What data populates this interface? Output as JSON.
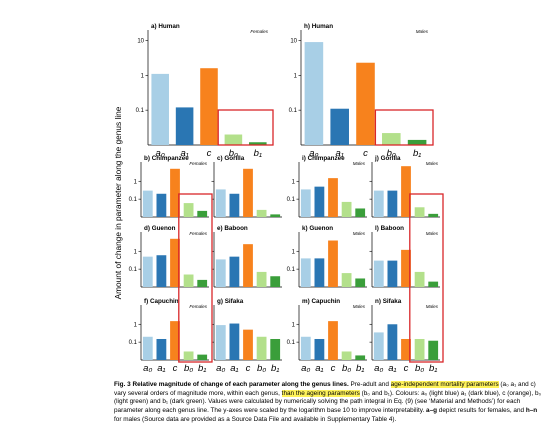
{
  "figure": {
    "ylabel": "Amount of change in parameter along the genus line",
    "colors": {
      "a0": "#a8cfe6",
      "a1": "#2a76b3",
      "c": "#f7821d",
      "b0": "#b3e08b",
      "b1": "#3a9e3a",
      "highlight_box": "#d9262a",
      "caption_highlight": "#fff35a"
    },
    "yscale": "log",
    "yticks_big": [
      "10",
      "1",
      "0.1"
    ],
    "yticks_small": [
      "1",
      "0.1"
    ],
    "param_labels": [
      "a₀",
      "a₁",
      "c",
      "b₀",
      "b₁"
    ],
    "panels_big": [
      {
        "id": "a",
        "title": "a) Human",
        "sex": "Females"
      },
      {
        "id": "h",
        "title": "h) Human",
        "sex": "Males"
      }
    ],
    "panels_small": [
      {
        "id": "b",
        "title": "b) Chimpanzee",
        "sex": "Females"
      },
      {
        "id": "c",
        "title": "c) Gorilla",
        "sex": ""
      },
      {
        "id": "i",
        "title": "i) Chimpanzee",
        "sex": "Males"
      },
      {
        "id": "j",
        "title": "j) Gorilla",
        "sex": "Males"
      },
      {
        "id": "d",
        "title": "d) Guenon",
        "sex": "Females"
      },
      {
        "id": "e",
        "title": "e) Baboon",
        "sex": ""
      },
      {
        "id": "k",
        "title": "k) Guenon",
        "sex": "Males"
      },
      {
        "id": "l",
        "title": "l) Baboon",
        "sex": "Males"
      },
      {
        "id": "f",
        "title": "f) Capuchin",
        "sex": "Females"
      },
      {
        "id": "g",
        "title": "g) Sifaka",
        "sex": ""
      },
      {
        "id": "m",
        "title": "m) Capuchin",
        "sex": "Males"
      },
      {
        "id": "n",
        "title": "n) Sifaka",
        "sex": "Males"
      }
    ]
  },
  "chart_data": [
    {
      "type": "bar",
      "panel": "a",
      "categories": [
        "a0",
        "a1",
        "c",
        "b0",
        "b1"
      ],
      "values": [
        1.1,
        0.12,
        1.6,
        0.02,
        0.012
      ],
      "ylim": [
        0.01,
        20
      ]
    },
    {
      "type": "bar",
      "panel": "h",
      "categories": [
        "a0",
        "a1",
        "c",
        "b0",
        "b1"
      ],
      "values": [
        9,
        0.11,
        2.3,
        0.022,
        0.014
      ],
      "ylim": [
        0.01,
        20
      ]
    },
    {
      "type": "bar",
      "panel": "b",
      "categories": [
        "a0",
        "a1",
        "c",
        "b0",
        "b1"
      ],
      "values": [
        0.3,
        0.2,
        5.0,
        0.06,
        0.022
      ],
      "ylim": [
        0.01,
        12
      ]
    },
    {
      "type": "bar",
      "panel": "c",
      "categories": [
        "a0",
        "a1",
        "c",
        "b0",
        "b1"
      ],
      "values": [
        0.35,
        0.2,
        5.0,
        0.025,
        0.014
      ],
      "ylim": [
        0.01,
        12
      ]
    },
    {
      "type": "bar",
      "panel": "i",
      "categories": [
        "a0",
        "a1",
        "c",
        "b0",
        "b1"
      ],
      "values": [
        0.35,
        0.5,
        1.5,
        0.07,
        0.03
      ],
      "ylim": [
        0.01,
        12
      ]
    },
    {
      "type": "bar",
      "panel": "j",
      "categories": [
        "a0",
        "a1",
        "c",
        "b0",
        "b1"
      ],
      "values": [
        0.3,
        0.3,
        7.0,
        0.035,
        0.015
      ],
      "ylim": [
        0.01,
        12
      ]
    },
    {
      "type": "bar",
      "panel": "d",
      "categories": [
        "a0",
        "a1",
        "c",
        "b0",
        "b1"
      ],
      "values": [
        0.5,
        0.6,
        5.0,
        0.05,
        0.025
      ],
      "ylim": [
        0.01,
        12
      ]
    },
    {
      "type": "bar",
      "panel": "e",
      "categories": [
        "a0",
        "a1",
        "c",
        "b0",
        "b1"
      ],
      "values": [
        0.35,
        0.5,
        2.5,
        0.07,
        0.04
      ],
      "ylim": [
        0.01,
        12
      ]
    },
    {
      "type": "bar",
      "panel": "k",
      "categories": [
        "a0",
        "a1",
        "c",
        "b0",
        "b1"
      ],
      "values": [
        0.4,
        0.4,
        4.0,
        0.06,
        0.03
      ],
      "ylim": [
        0.01,
        12
      ]
    },
    {
      "type": "bar",
      "panel": "l",
      "categories": [
        "a0",
        "a1",
        "c",
        "b0",
        "b1"
      ],
      "values": [
        0.3,
        0.3,
        1.2,
        0.07,
        0.02
      ],
      "ylim": [
        0.01,
        12
      ]
    },
    {
      "type": "bar",
      "panel": "f",
      "categories": [
        "a0",
        "a1",
        "c",
        "b0",
        "b1"
      ],
      "values": [
        0.2,
        0.15,
        1.5,
        0.03,
        0.02
      ],
      "ylim": [
        0.01,
        12
      ]
    },
    {
      "type": "bar",
      "panel": "g",
      "categories": [
        "a0",
        "a1",
        "c",
        "b0",
        "b1"
      ],
      "values": [
        0.9,
        1.1,
        0.5,
        0.2,
        0.15
      ],
      "ylim": [
        0.01,
        12
      ]
    },
    {
      "type": "bar",
      "panel": "m",
      "categories": [
        "a0",
        "a1",
        "c",
        "b0",
        "b1"
      ],
      "values": [
        0.2,
        0.15,
        1.5,
        0.03,
        0.018
      ],
      "ylim": [
        0.01,
        12
      ]
    },
    {
      "type": "bar",
      "panel": "n",
      "categories": [
        "a0",
        "a1",
        "c",
        "b0",
        "b1"
      ],
      "values": [
        0.35,
        1.0,
        0.15,
        0.15,
        0.12
      ],
      "ylim": [
        0.01,
        12
      ]
    }
  ],
  "caption": {
    "fig_label": "Fig. 3 Relative magnitude of change of each parameter along the genus lines.",
    "s1": " Pre-adult and ",
    "h1": "age-independent mortality parameters",
    "s2": " (a₀ a₁ and c) vary several orders of magnitude more, within each genus, ",
    "h2": "than the ageing parameters",
    "s3": " (b₀ and b₁). Colours: a₀ (light blue) a₁ (dark blue), c (orange), b₀ (light green) and b₁ (dark green). Values were calculated by numerically solving the path integral in Eq. (9) (see ‘Material and Methods’) for each parameter along each genus line. The y-axes were scaled by the logarithm base 10 to improve interpretability. ",
    "b1": "a–g",
    "s4": " depict results for females, and ",
    "b2": "h–n",
    "s5": " for males (Source data are provided as a Source Data File and available in Supplementary Table 4)."
  }
}
